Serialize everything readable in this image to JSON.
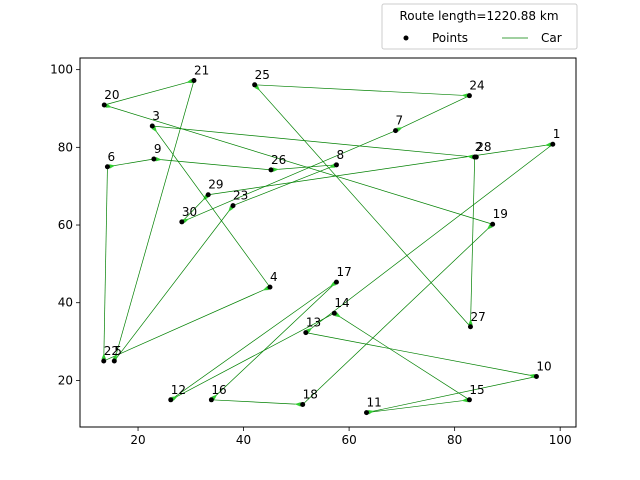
{
  "chart_data": {
    "type": "scatter",
    "title": "",
    "xlabel": "",
    "ylabel": "",
    "xlim": [
      9,
      103
    ],
    "ylim": [
      8,
      103
    ],
    "grid": false,
    "x_ticks": [
      20,
      40,
      60,
      80,
      100
    ],
    "y_ticks": [
      20,
      40,
      60,
      80,
      100
    ],
    "legend": {
      "placement": "top-right",
      "title": "Route length=1220.88 km",
      "entries": [
        "Points",
        "Car"
      ]
    },
    "colors": {
      "points": "#000000",
      "route": "#008000",
      "arrow": "#32cd32"
    },
    "points": [
      {
        "id": "1",
        "x": 98.6,
        "y": 80.8
      },
      {
        "id": "2",
        "x": 83.8,
        "y": 77.5
      },
      {
        "id": "3",
        "x": 22.7,
        "y": 85.5
      },
      {
        "id": "4",
        "x": 45.0,
        "y": 44.0
      },
      {
        "id": "5",
        "x": 15.5,
        "y": 25.0
      },
      {
        "id": "6",
        "x": 14.2,
        "y": 75.0
      },
      {
        "id": "7",
        "x": 68.8,
        "y": 84.3
      },
      {
        "id": "8",
        "x": 57.6,
        "y": 75.5
      },
      {
        "id": "9",
        "x": 23.0,
        "y": 77.0
      },
      {
        "id": "10",
        "x": 95.5,
        "y": 21.0
      },
      {
        "id": "11",
        "x": 63.3,
        "y": 11.7
      },
      {
        "id": "12",
        "x": 26.2,
        "y": 15.0
      },
      {
        "id": "13",
        "x": 51.8,
        "y": 32.3
      },
      {
        "id": "14",
        "x": 57.2,
        "y": 37.3
      },
      {
        "id": "15",
        "x": 82.8,
        "y": 15.0
      },
      {
        "id": "16",
        "x": 33.9,
        "y": 15.0
      },
      {
        "id": "17",
        "x": 57.6,
        "y": 45.3
      },
      {
        "id": "18",
        "x": 51.2,
        "y": 13.8
      },
      {
        "id": "19",
        "x": 87.2,
        "y": 60.2
      },
      {
        "id": "20",
        "x": 13.6,
        "y": 90.9
      },
      {
        "id": "21",
        "x": 30.6,
        "y": 97.2
      },
      {
        "id": "22",
        "x": 13.5,
        "y": 25.0
      },
      {
        "id": "23",
        "x": 38.0,
        "y": 65.0
      },
      {
        "id": "24",
        "x": 82.8,
        "y": 93.3
      },
      {
        "id": "25",
        "x": 42.1,
        "y": 96.1
      },
      {
        "id": "26",
        "x": 45.2,
        "y": 74.2
      },
      {
        "id": "27",
        "x": 83.0,
        "y": 33.8
      },
      {
        "id": "28",
        "x": 84.1,
        "y": 77.5
      },
      {
        "id": "29",
        "x": 33.3,
        "y": 67.8
      },
      {
        "id": "30",
        "x": 28.3,
        "y": 60.8
      }
    ],
    "route": [
      "1",
      "29",
      "30",
      "7",
      "24",
      "25",
      "27",
      "2",
      "3",
      "4",
      "22",
      "6",
      "9",
      "26",
      "8",
      "23",
      "5",
      "21",
      "20",
      "19",
      "18",
      "16",
      "17",
      "12",
      "14",
      "15",
      "11",
      "10",
      "13",
      "1"
    ]
  }
}
